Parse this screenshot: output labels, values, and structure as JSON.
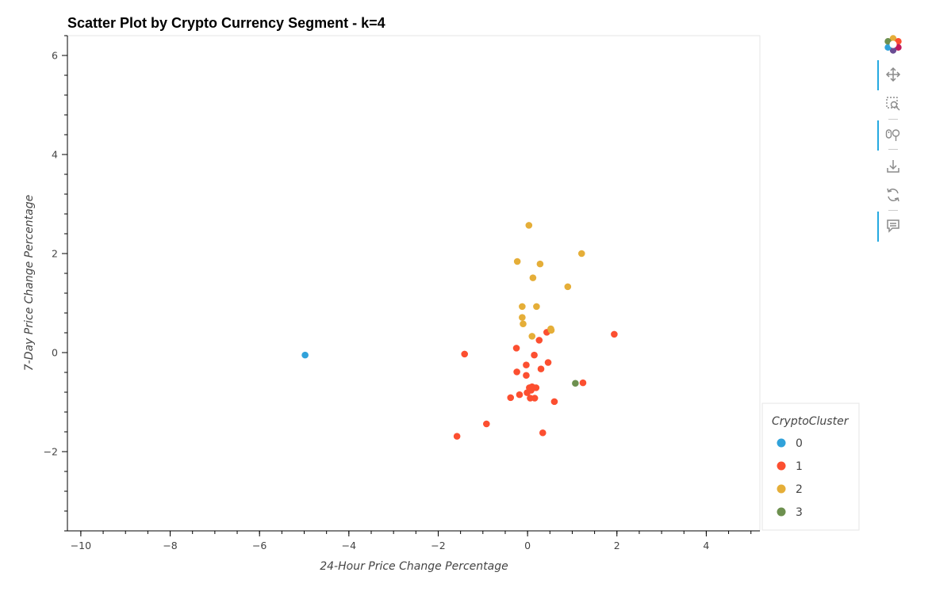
{
  "chart_data": {
    "type": "scatter",
    "title": "Scatter Plot by Crypto Currency Segment - k=4",
    "xlabel": "24-Hour Price Change Percentage",
    "ylabel": "7-Day Price Change Percentage",
    "xlim": [
      -10.3,
      5.2
    ],
    "ylim": [
      -3.6,
      6.4
    ],
    "x_ticks": [
      -10,
      -8,
      -6,
      -4,
      -2,
      0,
      2,
      4
    ],
    "x_tick_labels": [
      "−10",
      "−8",
      "−6",
      "−4",
      "−2",
      "0",
      "2",
      "4"
    ],
    "y_ticks": [
      -2,
      0,
      2,
      4,
      6
    ],
    "y_tick_labels": [
      "−2",
      "0",
      "2",
      "4",
      "6"
    ],
    "grid": false,
    "legend": {
      "title": "CryptoCluster",
      "placement": "right-bottom",
      "entries": [
        "0",
        "1",
        "2",
        "3"
      ]
    },
    "series": [
      {
        "name": "0",
        "color": "#30a2da",
        "points": [
          [
            -4.98,
            -0.05
          ]
        ]
      },
      {
        "name": "1",
        "color": "#fc4f30",
        "points": [
          [
            -1.41,
            -0.03
          ],
          [
            -1.58,
            -1.69
          ],
          [
            -0.92,
            -1.44
          ],
          [
            -0.38,
            -0.91
          ],
          [
            -0.25,
            0.09
          ],
          [
            -0.24,
            -0.39
          ],
          [
            -0.18,
            -0.85
          ],
          [
            -0.03,
            -0.25
          ],
          [
            -0.03,
            -0.46
          ],
          [
            -0.01,
            -0.81
          ],
          [
            0.04,
            -0.71
          ],
          [
            0.06,
            -0.92
          ],
          [
            0.08,
            -0.76
          ],
          [
            0.1,
            -0.69
          ],
          [
            0.15,
            -0.05
          ],
          [
            0.16,
            -0.92
          ],
          [
            0.19,
            -0.71
          ],
          [
            0.26,
            0.25
          ],
          [
            0.3,
            -0.33
          ],
          [
            0.34,
            -1.62
          ],
          [
            0.43,
            0.41
          ],
          [
            0.46,
            -0.2
          ],
          [
            0.6,
            -0.99
          ],
          [
            1.24,
            -0.61
          ],
          [
            1.94,
            0.37
          ]
        ]
      },
      {
        "name": "2",
        "color": "#e5ae38",
        "points": [
          [
            0.03,
            2.57
          ],
          [
            -0.23,
            1.84
          ],
          [
            0.28,
            1.79
          ],
          [
            0.12,
            1.51
          ],
          [
            1.21,
            2.0
          ],
          [
            0.9,
            1.33
          ],
          [
            -0.12,
            0.93
          ],
          [
            0.2,
            0.93
          ],
          [
            -0.12,
            0.71
          ],
          [
            -0.1,
            0.58
          ],
          [
            0.52,
            0.48
          ],
          [
            0.53,
            0.45
          ],
          [
            0.1,
            0.33
          ]
        ]
      },
      {
        "name": "3",
        "color": "#6d904f",
        "points": [
          [
            1.07,
            -0.62
          ]
        ]
      }
    ]
  },
  "toolbar": {
    "tools": [
      "bokeh-logo-icon",
      "pan-icon",
      "box-zoom-icon",
      "wheel-zoom-icon",
      "save-icon",
      "reset-icon",
      "hover-icon"
    ]
  }
}
